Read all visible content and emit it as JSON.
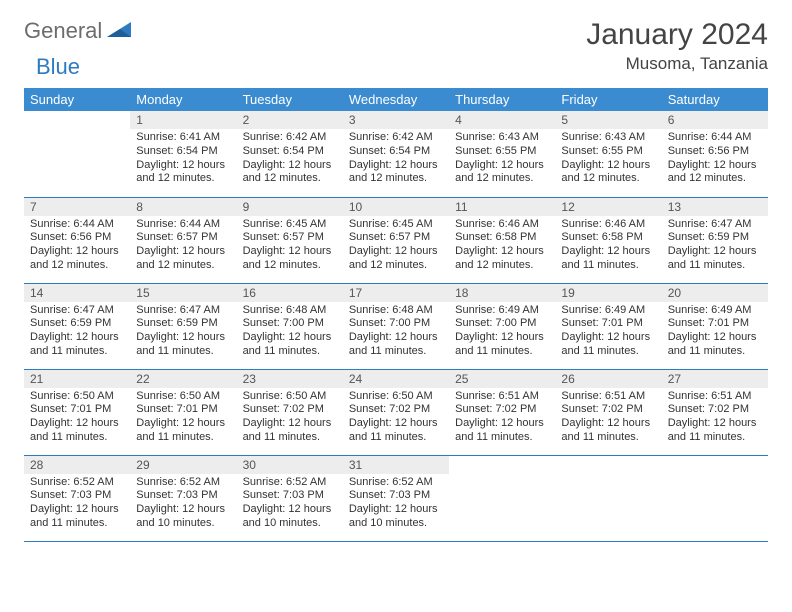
{
  "brand": {
    "part1": "General",
    "part2": "Blue"
  },
  "title": "January 2024",
  "location": "Musoma, Tanzania",
  "colors": {
    "header_bg": "#3a8bd0",
    "header_text": "#ffffff",
    "daynum_bg": "#ededed",
    "rule": "#2f7bbf",
    "logo_gray": "#6d6d6d",
    "logo_blue": "#2f7bbf"
  },
  "weekdays": [
    "Sunday",
    "Monday",
    "Tuesday",
    "Wednesday",
    "Thursday",
    "Friday",
    "Saturday"
  ],
  "weeks": [
    [
      {
        "empty": true
      },
      {
        "n": "1",
        "sr": "6:41 AM",
        "ss": "6:54 PM",
        "dl": "12 hours and 12 minutes."
      },
      {
        "n": "2",
        "sr": "6:42 AM",
        "ss": "6:54 PM",
        "dl": "12 hours and 12 minutes."
      },
      {
        "n": "3",
        "sr": "6:42 AM",
        "ss": "6:54 PM",
        "dl": "12 hours and 12 minutes."
      },
      {
        "n": "4",
        "sr": "6:43 AM",
        "ss": "6:55 PM",
        "dl": "12 hours and 12 minutes."
      },
      {
        "n": "5",
        "sr": "6:43 AM",
        "ss": "6:55 PM",
        "dl": "12 hours and 12 minutes."
      },
      {
        "n": "6",
        "sr": "6:44 AM",
        "ss": "6:56 PM",
        "dl": "12 hours and 12 minutes."
      }
    ],
    [
      {
        "n": "7",
        "sr": "6:44 AM",
        "ss": "6:56 PM",
        "dl": "12 hours and 12 minutes."
      },
      {
        "n": "8",
        "sr": "6:44 AM",
        "ss": "6:57 PM",
        "dl": "12 hours and 12 minutes."
      },
      {
        "n": "9",
        "sr": "6:45 AM",
        "ss": "6:57 PM",
        "dl": "12 hours and 12 minutes."
      },
      {
        "n": "10",
        "sr": "6:45 AM",
        "ss": "6:57 PM",
        "dl": "12 hours and 12 minutes."
      },
      {
        "n": "11",
        "sr": "6:46 AM",
        "ss": "6:58 PM",
        "dl": "12 hours and 12 minutes."
      },
      {
        "n": "12",
        "sr": "6:46 AM",
        "ss": "6:58 PM",
        "dl": "12 hours and 11 minutes."
      },
      {
        "n": "13",
        "sr": "6:47 AM",
        "ss": "6:59 PM",
        "dl": "12 hours and 11 minutes."
      }
    ],
    [
      {
        "n": "14",
        "sr": "6:47 AM",
        "ss": "6:59 PM",
        "dl": "12 hours and 11 minutes."
      },
      {
        "n": "15",
        "sr": "6:47 AM",
        "ss": "6:59 PM",
        "dl": "12 hours and 11 minutes."
      },
      {
        "n": "16",
        "sr": "6:48 AM",
        "ss": "7:00 PM",
        "dl": "12 hours and 11 minutes."
      },
      {
        "n": "17",
        "sr": "6:48 AM",
        "ss": "7:00 PM",
        "dl": "12 hours and 11 minutes."
      },
      {
        "n": "18",
        "sr": "6:49 AM",
        "ss": "7:00 PM",
        "dl": "12 hours and 11 minutes."
      },
      {
        "n": "19",
        "sr": "6:49 AM",
        "ss": "7:01 PM",
        "dl": "12 hours and 11 minutes."
      },
      {
        "n": "20",
        "sr": "6:49 AM",
        "ss": "7:01 PM",
        "dl": "12 hours and 11 minutes."
      }
    ],
    [
      {
        "n": "21",
        "sr": "6:50 AM",
        "ss": "7:01 PM",
        "dl": "12 hours and 11 minutes."
      },
      {
        "n": "22",
        "sr": "6:50 AM",
        "ss": "7:01 PM",
        "dl": "12 hours and 11 minutes."
      },
      {
        "n": "23",
        "sr": "6:50 AM",
        "ss": "7:02 PM",
        "dl": "12 hours and 11 minutes."
      },
      {
        "n": "24",
        "sr": "6:50 AM",
        "ss": "7:02 PM",
        "dl": "12 hours and 11 minutes."
      },
      {
        "n": "25",
        "sr": "6:51 AM",
        "ss": "7:02 PM",
        "dl": "12 hours and 11 minutes."
      },
      {
        "n": "26",
        "sr": "6:51 AM",
        "ss": "7:02 PM",
        "dl": "12 hours and 11 minutes."
      },
      {
        "n": "27",
        "sr": "6:51 AM",
        "ss": "7:02 PM",
        "dl": "12 hours and 11 minutes."
      }
    ],
    [
      {
        "n": "28",
        "sr": "6:52 AM",
        "ss": "7:03 PM",
        "dl": "12 hours and 11 minutes."
      },
      {
        "n": "29",
        "sr": "6:52 AM",
        "ss": "7:03 PM",
        "dl": "12 hours and 10 minutes."
      },
      {
        "n": "30",
        "sr": "6:52 AM",
        "ss": "7:03 PM",
        "dl": "12 hours and 10 minutes."
      },
      {
        "n": "31",
        "sr": "6:52 AM",
        "ss": "7:03 PM",
        "dl": "12 hours and 10 minutes."
      },
      {
        "empty": true
      },
      {
        "empty": true
      },
      {
        "empty": true
      }
    ]
  ],
  "labels": {
    "sunrise": "Sunrise:",
    "sunset": "Sunset:",
    "daylight": "Daylight:"
  }
}
